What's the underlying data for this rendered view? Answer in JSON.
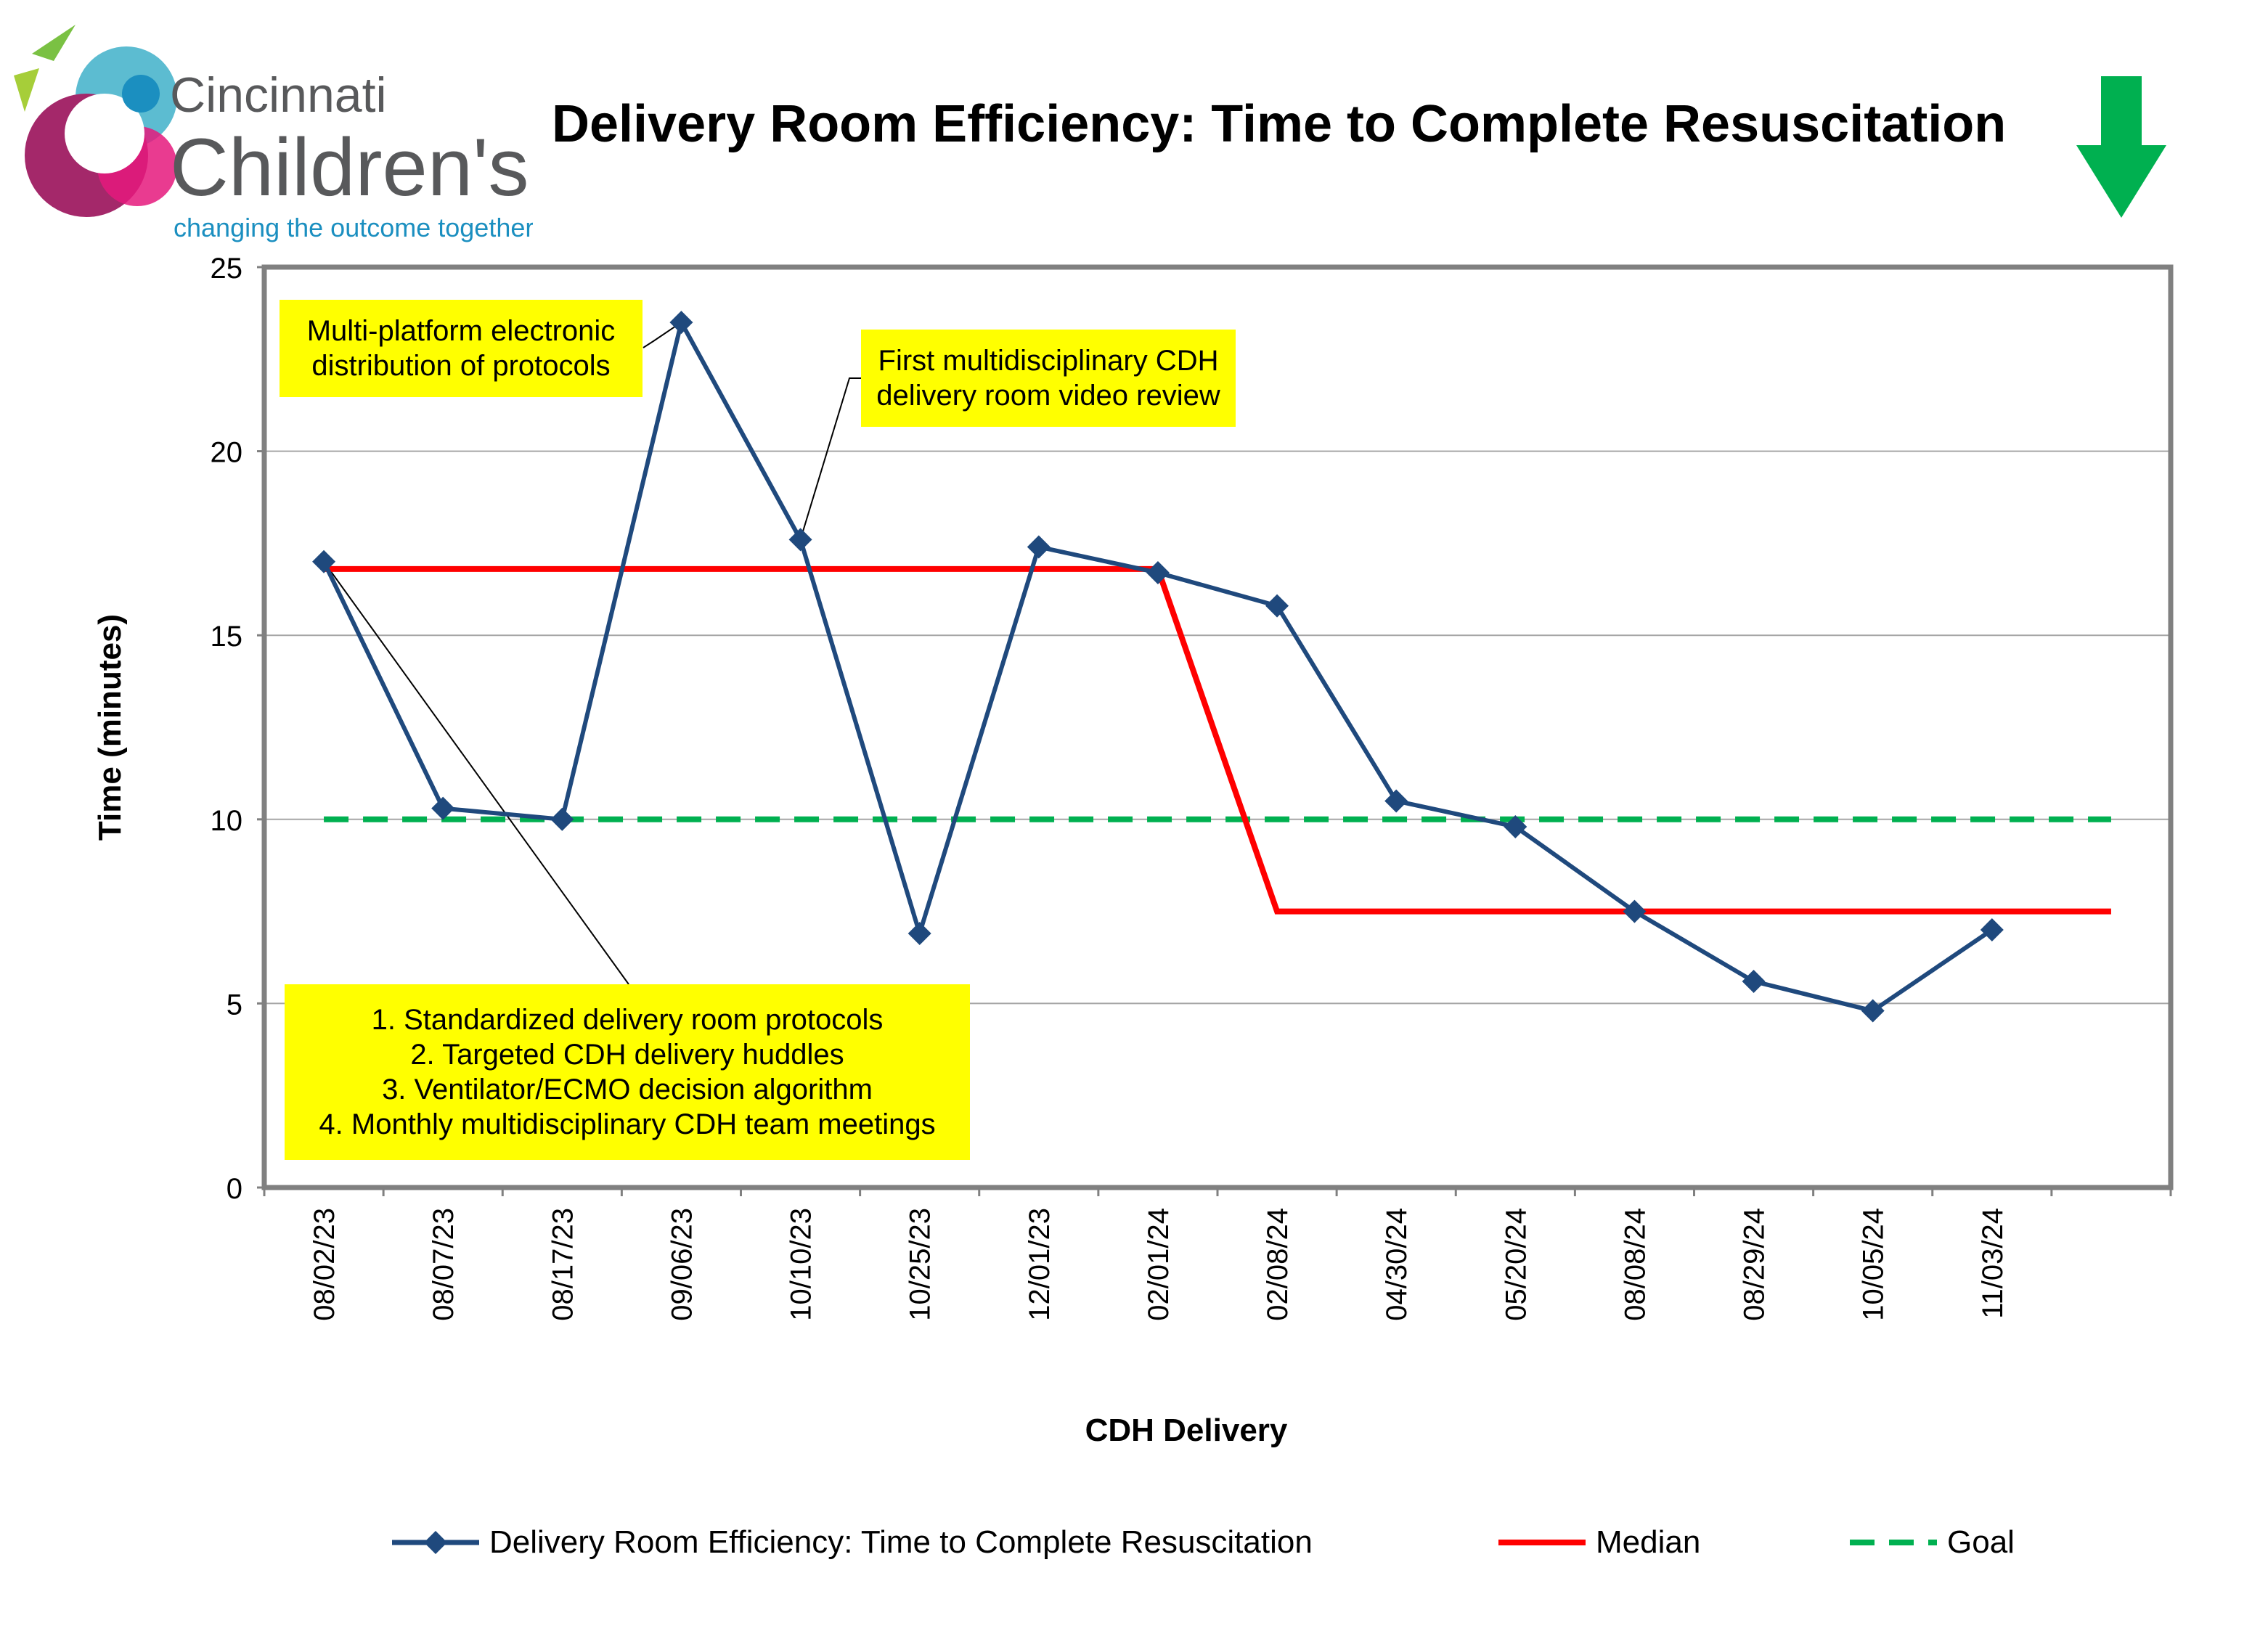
{
  "header": {
    "logo_text_top": "Cincinnati",
    "logo_text_main": "Children's",
    "logo_tagline": "changing the outcome together",
    "title": "Delivery Room Efficiency: Time to Complete Resuscitation",
    "direction_icon": "down-arrow-icon",
    "direction_color": "#00b050"
  },
  "chart_data": {
    "type": "line",
    "title": "Delivery Room Efficiency: Time to Complete Resuscitation",
    "xlabel": "CDH Delivery",
    "ylabel": "Time (minutes)",
    "ylim": [
      0,
      25
    ],
    "yticks": [
      0,
      5,
      10,
      15,
      20,
      25
    ],
    "grid": true,
    "legend_position": "bottom",
    "categories": [
      "08/02/23",
      "08/07/23",
      "08/17/23",
      "09/06/23",
      "10/10/23",
      "10/25/23",
      "12/01/23",
      "02/01/24",
      "02/08/24",
      "04/30/24",
      "05/20/24",
      "08/08/24",
      "08/29/24",
      "10/05/24",
      "11/03/24"
    ],
    "series": [
      {
        "name": "Delivery Room Efficiency: Time to Complete Resuscitation",
        "color": "#1f497d",
        "marker": "diamond",
        "values": [
          17.0,
          10.3,
          10.0,
          23.5,
          17.6,
          6.9,
          17.4,
          16.7,
          15.8,
          10.5,
          9.8,
          7.5,
          5.6,
          4.8,
          7.0
        ]
      },
      {
        "name": "Median",
        "color": "#ff0000",
        "line": "solid",
        "points": [
          [
            0,
            16.8
          ],
          [
            7,
            16.8
          ],
          [
            8,
            7.5
          ],
          [
            15,
            7.5
          ]
        ]
      },
      {
        "name": "Goal",
        "color": "#00b050",
        "line": "dashed",
        "points": [
          [
            0,
            10
          ],
          [
            15,
            10
          ]
        ]
      }
    ],
    "annotations": [
      {
        "id": "ann1",
        "text": "Multi-platform electronic\ndistribution of protocols",
        "points_to": "09/06/23"
      },
      {
        "id": "ann2",
        "text": "First multidisciplinary CDH\ndelivery room video review",
        "points_to": "10/10/23"
      },
      {
        "id": "ann3",
        "text": "1. Standardized delivery room protocols\n2. Targeted CDH delivery huddles\n3. Ventilator/ECMO decision algorithm\n4. Monthly multidisciplinary CDH team meetings",
        "points_to": "08/02/23"
      }
    ]
  }
}
